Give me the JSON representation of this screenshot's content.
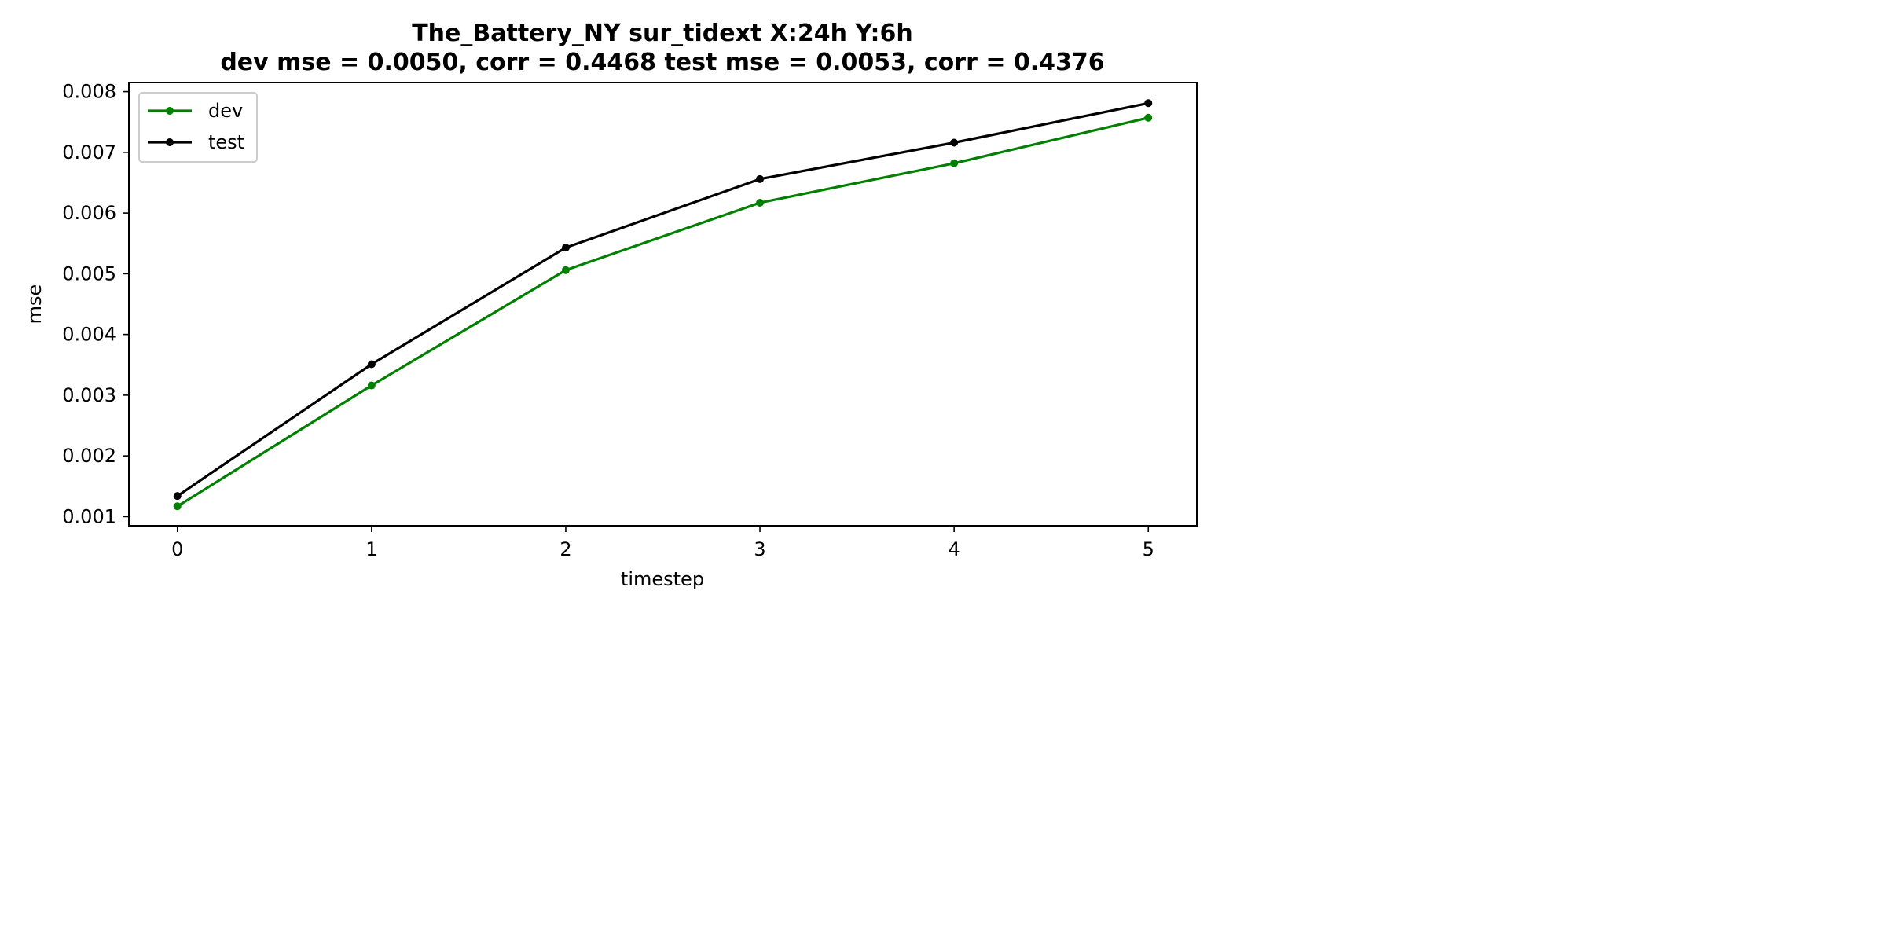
{
  "chart_data": {
    "type": "line",
    "title_line1": "The_Battery_NY   sur_tidext   X:24h   Y:6h",
    "title_line2": "dev mse = 0.0050, corr = 0.4468   test mse = 0.0053, corr = 0.4376",
    "xlabel": "timestep",
    "ylabel": "mse",
    "x": [
      0,
      1,
      2,
      3,
      4,
      5
    ],
    "xlim": [
      -0.25,
      5.25
    ],
    "ylim": [
      0.00085,
      0.00815
    ],
    "xticks": [
      0,
      1,
      2,
      3,
      4,
      5
    ],
    "yticks": [
      0.001,
      0.002,
      0.003,
      0.004,
      0.005,
      0.006,
      0.007,
      0.008
    ],
    "ytick_labels": [
      "0.001",
      "0.002",
      "0.003",
      "0.004",
      "0.005",
      "0.006",
      "0.007",
      "0.008"
    ],
    "grid": false,
    "legend_position": "upper-left",
    "series": [
      {
        "name": "dev",
        "color": "#008000",
        "values": [
          0.00117,
          0.00316,
          0.00506,
          0.00617,
          0.00682,
          0.00757
        ]
      },
      {
        "name": "test",
        "color": "#000000",
        "values": [
          0.00134,
          0.00351,
          0.00543,
          0.00656,
          0.00716,
          0.00781
        ]
      }
    ]
  }
}
